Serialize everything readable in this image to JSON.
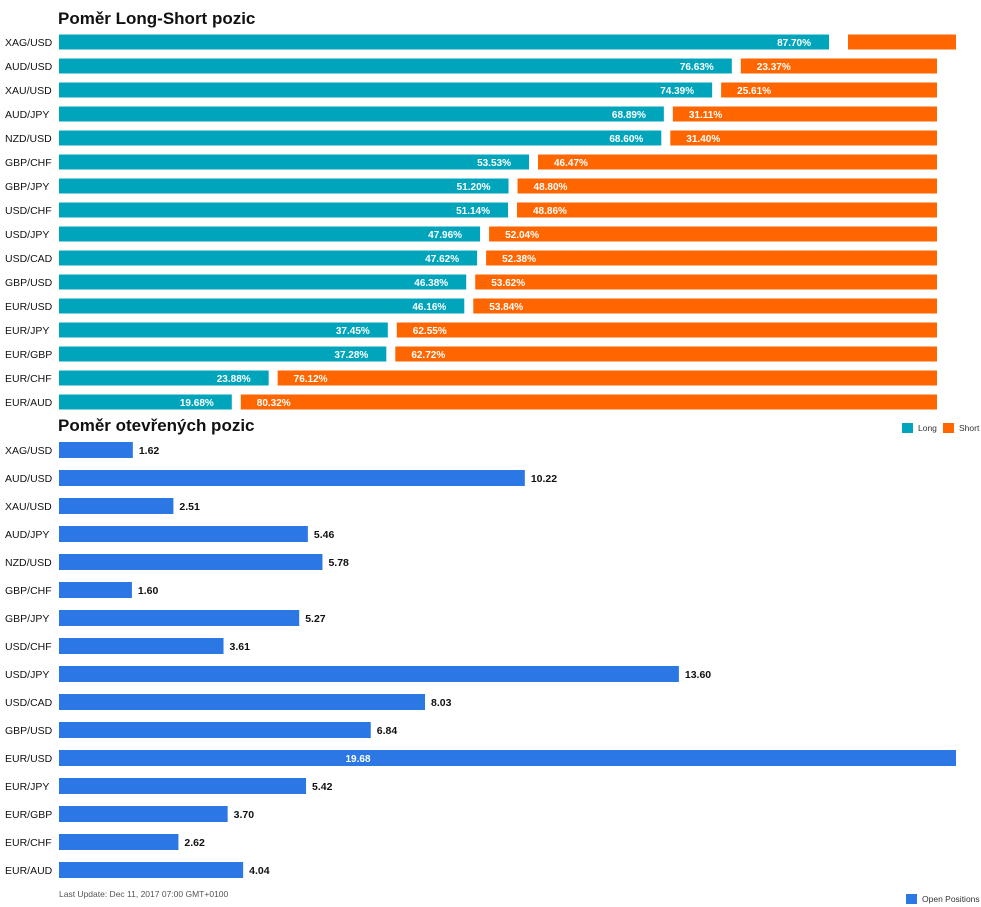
{
  "chart_data": [
    {
      "type": "bar",
      "stacked": true,
      "orientation": "horizontal",
      "title": "Poměr Long-Short pozic",
      "categories": [
        "XAG/USD",
        "AUD/USD",
        "XAU/USD",
        "AUD/JPY",
        "NZD/USD",
        "GBP/CHF",
        "GBP/JPY",
        "USD/CHF",
        "USD/JPY",
        "USD/CAD",
        "GBP/USD",
        "EUR/USD",
        "EUR/JPY",
        "EUR/GBP",
        "EUR/CHF",
        "EUR/AUD"
      ],
      "series": [
        {
          "name": "Long",
          "color": "#00a5bb",
          "values": [
            87.7,
            76.63,
            74.39,
            68.89,
            68.6,
            53.53,
            51.2,
            51.14,
            47.96,
            47.62,
            46.38,
            46.16,
            37.45,
            37.28,
            23.88,
            19.68
          ]
        },
        {
          "name": "Short",
          "color": "#ff6600",
          "values": [
            12.3,
            23.37,
            25.61,
            31.11,
            31.4,
            46.47,
            48.8,
            48.86,
            52.04,
            52.38,
            53.62,
            53.84,
            62.55,
            62.72,
            76.12,
            80.32
          ]
        }
      ],
      "data_labels": [
        [
          "87.70%",
          ""
        ],
        [
          "76.63%",
          "23.37%"
        ],
        [
          "74.39%",
          "25.61%"
        ],
        [
          "68.89%",
          "31.11%"
        ],
        [
          "68.60%",
          "31.40%"
        ],
        [
          "53.53%",
          "46.47%"
        ],
        [
          "51.20%",
          "48.80%"
        ],
        [
          "51.14%",
          "48.86%"
        ],
        [
          "47.96%",
          "52.04%"
        ],
        [
          "47.62%",
          "52.38%"
        ],
        [
          "46.38%",
          "53.62%"
        ],
        [
          "46.16%",
          "53.84%"
        ],
        [
          "37.45%",
          "62.55%"
        ],
        [
          "37.28%",
          "62.72%"
        ],
        [
          "23.88%",
          "76.12%"
        ],
        [
          "19.68%",
          "80.32%"
        ]
      ],
      "xlim": [
        0,
        100
      ],
      "legend": "bottom-right"
    },
    {
      "type": "bar",
      "orientation": "horizontal",
      "title": "Poměr otevřených pozic",
      "categories": [
        "XAG/USD",
        "AUD/USD",
        "XAU/USD",
        "AUD/JPY",
        "NZD/USD",
        "GBP/CHF",
        "GBP/JPY",
        "USD/CHF",
        "USD/JPY",
        "USD/CAD",
        "GBP/USD",
        "EUR/USD",
        "EUR/JPY",
        "EUR/GBP",
        "EUR/CHF",
        "EUR/AUD"
      ],
      "series": [
        {
          "name": "Open Positions",
          "color": "#2b78e4",
          "values": [
            1.62,
            10.22,
            2.51,
            5.46,
            5.78,
            1.6,
            5.27,
            3.61,
            13.6,
            8.03,
            6.84,
            19.68,
            5.42,
            3.7,
            2.62,
            4.04
          ]
        }
      ],
      "data_labels": [
        "1.62",
        "10.22",
        "2.51",
        "5.46",
        "5.78",
        "1.60",
        "5.27",
        "3.61",
        "13.60",
        "8.03",
        "6.84",
        "19.68",
        "5.42",
        "3.70",
        "2.62",
        "4.04"
      ],
      "xlim": [
        0,
        19.68
      ],
      "legend": "bottom-right"
    }
  ],
  "footer": {
    "last_update": "Last Update: Dec 11, 2017 07:00 GMT+0100"
  }
}
